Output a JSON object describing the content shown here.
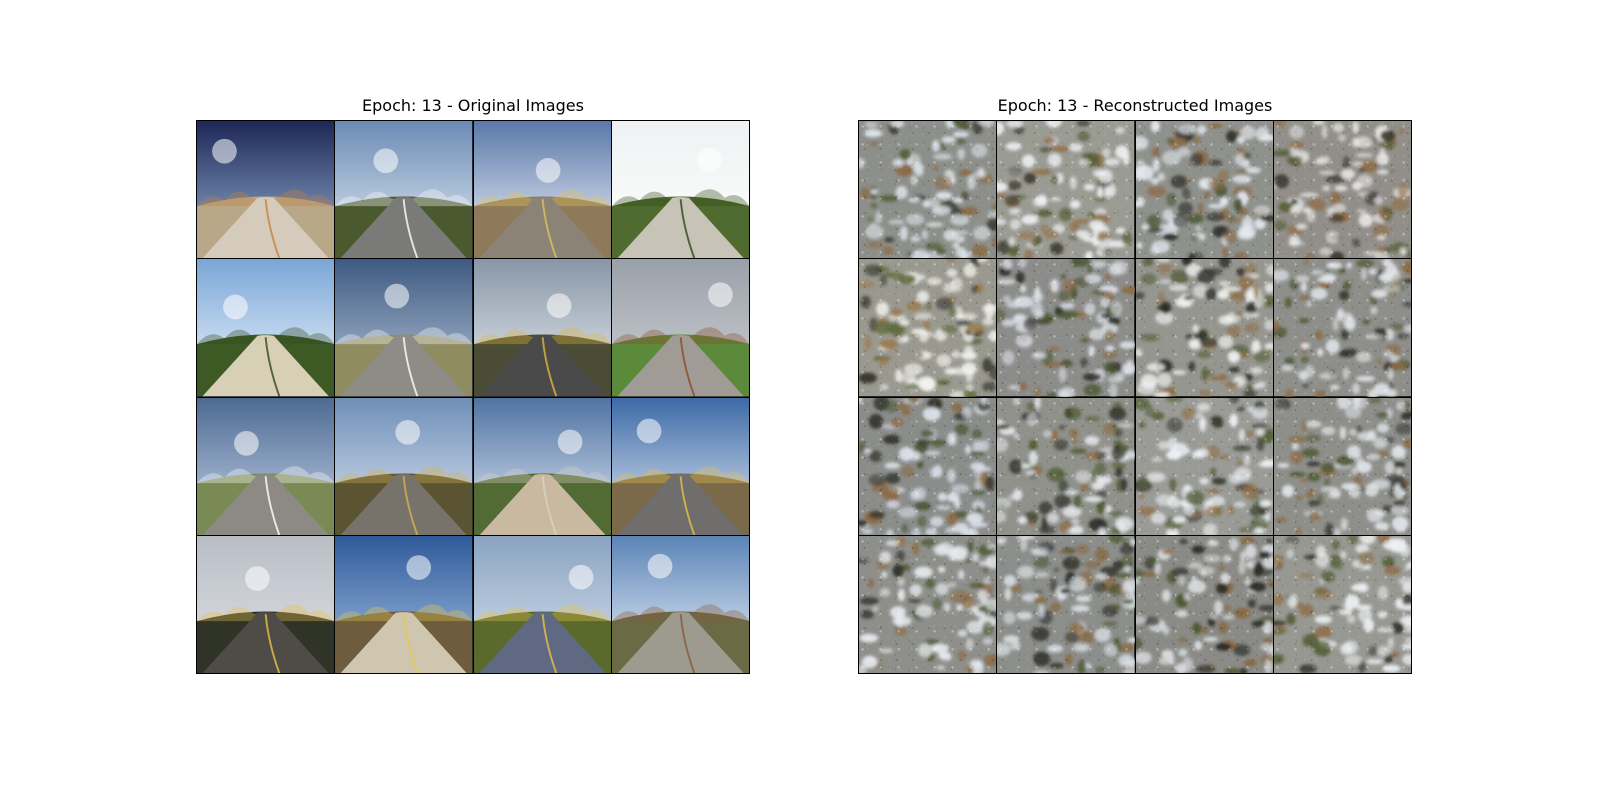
{
  "figure": {
    "left_panel": {
      "title": "Epoch: 13 - Original Images",
      "tiles": [
        {
          "sky_top": "#1d2756",
          "sky_bottom": "#9bb7d9",
          "ground": "#b9a888",
          "road": "#d4cbbd",
          "accent": "#c4823c"
        },
        {
          "sky_top": "#6b8bb4",
          "sky_bottom": "#e8eef7",
          "ground": "#4b5a2e",
          "road": "#7a7a78",
          "accent": "#ffffff"
        },
        {
          "sky_top": "#5a78a8",
          "sky_bottom": "#f7f9ff",
          "ground": "#8e7a5a",
          "road": "#8b8376",
          "accent": "#e1c25a"
        },
        {
          "sky_top": "#eef2f2",
          "sky_bottom": "#ffffff",
          "ground": "#4f6b2f",
          "road": "#c7c3b7",
          "accent": "#2e4a18"
        },
        {
          "sky_top": "#7aa6d6",
          "sky_bottom": "#f4f8ff",
          "ground": "#3d5a25",
          "road": "#d8cfb7",
          "accent": "#2f4a1c"
        },
        {
          "sky_top": "#3e5a82",
          "sky_bottom": "#b9c8da",
          "ground": "#8f8c62",
          "road": "#8e8c86",
          "accent": "#ffffff"
        },
        {
          "sky_top": "#8896a6",
          "sky_bottom": "#e9eef4",
          "ground": "#4b4c35",
          "road": "#4a4a4a",
          "accent": "#e0b73b"
        },
        {
          "sky_top": "#9aa0a8",
          "sky_bottom": "#cfd3d8",
          "ground": "#5b8a3a",
          "road": "#a09c95",
          "accent": "#8a4b2b"
        },
        {
          "sky_top": "#4d6a93",
          "sky_bottom": "#c8d6ea",
          "ground": "#7a8a55",
          "road": "#8d8a84",
          "accent": "#ffffff"
        },
        {
          "sky_top": "#6f8fb8",
          "sky_bottom": "#dfe7f2",
          "ground": "#5a5433",
          "road": "#77736b",
          "accent": "#d8b24a"
        },
        {
          "sky_top": "#4f73a2",
          "sky_bottom": "#e2ebf6",
          "ground": "#526a34",
          "road": "#c8b9a0",
          "accent": "#dad2c5"
        },
        {
          "sky_top": "#3d6aa6",
          "sky_bottom": "#e6edf7",
          "ground": "#7b6a4a",
          "road": "#6f6e6c",
          "accent": "#e6c04a"
        },
        {
          "sky_top": "#b9bec6",
          "sky_bottom": "#dfe2e6",
          "ground": "#2f3427",
          "road": "#4f4c48",
          "accent": "#e7c14a"
        },
        {
          "sky_top": "#2f5a9a",
          "sky_bottom": "#a7c3e4",
          "ground": "#6d5c3e",
          "road": "#cfc6b0",
          "accent": "#e5c94a"
        },
        {
          "sky_top": "#8aa3c1",
          "sky_bottom": "#d9e3ef",
          "ground": "#5a6a2c",
          "road": "#5f6a82",
          "accent": "#e8c24a"
        },
        {
          "sky_top": "#5b84b7",
          "sky_bottom": "#f1f5fb",
          "ground": "#6a6a45",
          "road": "#9d9a8f",
          "accent": "#8a5a3a"
        }
      ]
    },
    "right_panel": {
      "title": "Epoch: 13 - Reconstructed Images",
      "tiles": [
        {
          "base": "#8d8f8a",
          "light": "#dfe5ec",
          "dark": "#3a3a30",
          "warm": "#8a6a45",
          "green": "#4f5b34"
        },
        {
          "base": "#9a9b93",
          "light": "#eef1f3",
          "dark": "#3f3b2f",
          "warm": "#93724c",
          "green": "#56623a"
        },
        {
          "base": "#8f918c",
          "light": "#e4e9ef",
          "dark": "#2e2f2c",
          "warm": "#8b6b47",
          "green": "#4a5632"
        },
        {
          "base": "#928f8a",
          "light": "#e8e8e6",
          "dark": "#3a362c",
          "warm": "#8f6e49",
          "green": "#566038"
        },
        {
          "base": "#9a9990",
          "light": "#f3f3ee",
          "dark": "#34352c",
          "warm": "#9a7a4e",
          "green": "#5d6a39"
        },
        {
          "base": "#8c8d8a",
          "light": "#dfe3ea",
          "dark": "#2f2f2a",
          "warm": "#8a6a45",
          "green": "#4d5834"
        },
        {
          "base": "#969690",
          "light": "#f0f2f1",
          "dark": "#2b2c28",
          "warm": "#8f6f49",
          "green": "#55613a"
        },
        {
          "base": "#8e8f8b",
          "light": "#e3e7ec",
          "dark": "#35332b",
          "warm": "#8c6b46",
          "green": "#4f5a34"
        },
        {
          "base": "#8b8d8b",
          "light": "#dde3ec",
          "dark": "#35342d",
          "warm": "#8a6a45",
          "green": "#4d5935"
        },
        {
          "base": "#90918b",
          "light": "#e4e8ec",
          "dark": "#2f302b",
          "warm": "#8d6c47",
          "green": "#525e36"
        },
        {
          "base": "#9a9b97",
          "light": "#eef2f6",
          "dark": "#3a3a33",
          "warm": "#907048",
          "green": "#56623a"
        },
        {
          "base": "#8e8f8b",
          "light": "#e2e6ea",
          "dark": "#33332d",
          "warm": "#8b6b46",
          "green": "#4f5a34"
        },
        {
          "base": "#8e8f8b",
          "light": "#e6eaee",
          "dark": "#2e2f29",
          "warm": "#8d6c47",
          "green": "#4f5a33"
        },
        {
          "base": "#8c8e8b",
          "light": "#dfe4ea",
          "dark": "#31312b",
          "warm": "#8a6a45",
          "green": "#4e5934"
        },
        {
          "base": "#8a8b86",
          "light": "#dcdfe3",
          "dark": "#2a2a26",
          "warm": "#87663f",
          "green": "#4a5530"
        },
        {
          "base": "#979892",
          "light": "#edf0f2",
          "dark": "#38372f",
          "warm": "#8f6e49",
          "green": "#566139"
        }
      ]
    }
  }
}
